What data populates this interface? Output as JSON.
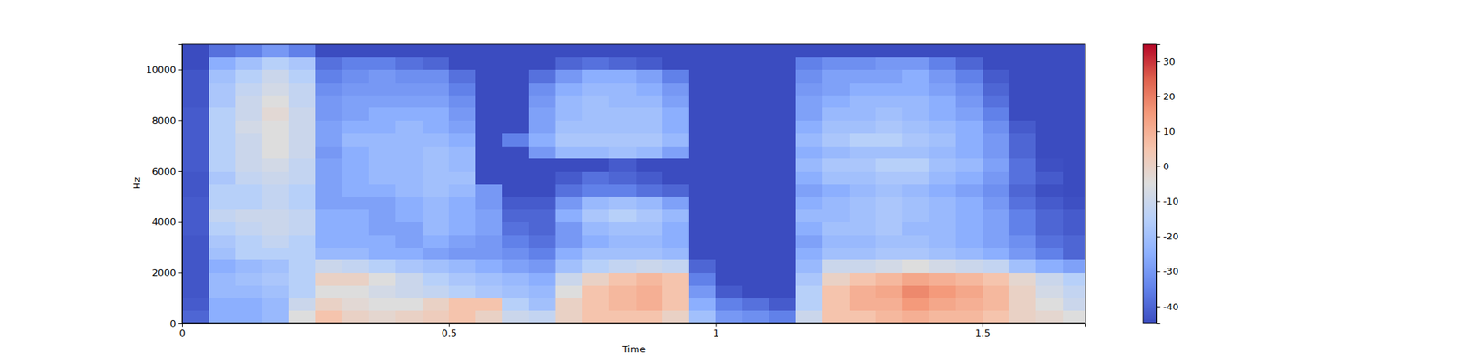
{
  "chart_data": {
    "type": "heatmap",
    "x_label": "Time",
    "y_label": "Hz",
    "xlim": [
      0,
      1.693
    ],
    "ylim": [
      0,
      11025
    ],
    "xticks": [
      0,
      0.5,
      1,
      1.5
    ],
    "yticks": [
      0,
      2000,
      4000,
      6000,
      8000,
      10000
    ],
    "color_range": [
      -44.8,
      35
    ],
    "color_ticks": [
      -40,
      -30,
      -20,
      -10,
      0,
      10,
      20,
      30
    ],
    "x_bins": [
      0,
      0.05,
      0.1,
      0.15,
      0.2,
      0.25,
      0.3,
      0.35,
      0.4,
      0.45,
      0.5,
      0.55,
      0.6,
      0.65,
      0.7,
      0.75,
      0.8,
      0.85,
      0.9,
      0.95,
      1,
      1.05,
      1.1,
      1.15,
      1.2,
      1.25,
      1.3,
      1.35,
      1.4,
      1.45,
      1.5,
      1.55,
      1.6,
      1.65,
      1.7
    ],
    "y_bins": [
      0,
      500,
      1000,
      1500,
      2000,
      2500,
      3000,
      3500,
      4000,
      4500,
      5000,
      5500,
      6000,
      6500,
      7000,
      7500,
      8000,
      8500,
      9000,
      9500,
      10000,
      10500,
      11000,
      11025
    ],
    "z": [
      [
        -40,
        -25,
        -25,
        -22,
        -5,
        5,
        0,
        -2,
        0,
        2,
        5,
        0,
        -10,
        -12,
        0,
        5,
        5,
        5,
        0,
        -20,
        -30,
        -32,
        -35,
        -10,
        5,
        5,
        8,
        10,
        8,
        8,
        5,
        0,
        -2,
        -5
      ],
      [
        -42,
        -25,
        -25,
        -22,
        -10,
        0,
        -3,
        -5,
        -5,
        0,
        5,
        5,
        -15,
        -20,
        0,
        5,
        8,
        10,
        5,
        -25,
        -35,
        -38,
        -42,
        -15,
        5,
        10,
        10,
        15,
        12,
        10,
        8,
        0,
        -5,
        -10
      ],
      [
        -43,
        -22,
        -22,
        -20,
        -15,
        -5,
        -5,
        -8,
        -10,
        -12,
        -15,
        -18,
        -20,
        -22,
        -5,
        5,
        8,
        10,
        5,
        -30,
        -42,
        -44.8,
        -44.8,
        -15,
        5,
        10,
        12,
        18,
        15,
        12,
        8,
        0,
        -8,
        -12
      ],
      [
        -43,
        -22,
        -20,
        -18,
        -15,
        0,
        0,
        -5,
        -10,
        -15,
        -18,
        -20,
        -22,
        -25,
        -10,
        0,
        5,
        8,
        5,
        -35,
        -44.8,
        -44.8,
        -44.8,
        -18,
        0,
        5,
        8,
        12,
        10,
        8,
        5,
        -2,
        -10,
        -15
      ],
      [
        -43,
        -25,
        -22,
        -20,
        -15,
        -10,
        -12,
        -15,
        -18,
        -20,
        -22,
        -25,
        -28,
        -30,
        -20,
        -15,
        -12,
        -10,
        -12,
        -40,
        -44.8,
        -44.8,
        -44.8,
        -22,
        -10,
        -10,
        -8,
        -5,
        -8,
        -10,
        -12,
        -20,
        -25,
        -28
      ],
      [
        -43,
        -20,
        -15,
        -15,
        -15,
        -22,
        -22,
        -25,
        -25,
        -28,
        -30,
        -30,
        -32,
        -35,
        -25,
        -20,
        -20,
        -20,
        -22,
        -44.8,
        -44.8,
        -44.8,
        -44.8,
        -25,
        -20,
        -20,
        -18,
        -18,
        -20,
        -22,
        -25,
        -30,
        -35,
        -40
      ],
      [
        -43,
        -18,
        -15,
        -12,
        -15,
        -25,
        -25,
        -25,
        -28,
        -25,
        -28,
        -30,
        -35,
        -38,
        -30,
        -25,
        -22,
        -22,
        -25,
        -44.8,
        -44.8,
        -44.8,
        -44.8,
        -28,
        -22,
        -22,
        -20,
        -20,
        -22,
        -25,
        -28,
        -32,
        -38,
        -40
      ],
      [
        -42,
        -15,
        -12,
        -10,
        -12,
        -25,
        -25,
        -28,
        -28,
        -22,
        -25,
        -28,
        -38,
        -40,
        -30,
        -22,
        -20,
        -20,
        -25,
        -44.8,
        -44.8,
        -44.8,
        -44.8,
        -25,
        -20,
        -20,
        -18,
        -22,
        -22,
        -25,
        -28,
        -35,
        -40,
        -42
      ],
      [
        -42,
        -12,
        -10,
        -10,
        -12,
        -25,
        -25,
        -28,
        -25,
        -22,
        -25,
        -28,
        -40,
        -40,
        -25,
        -18,
        -15,
        -18,
        -22,
        -44.8,
        -44.8,
        -44.8,
        -44.8,
        -22,
        -22,
        -20,
        -18,
        -20,
        -22,
        -25,
        -28,
        -35,
        -40,
        -42
      ],
      [
        -42,
        -15,
        -15,
        -12,
        -15,
        -28,
        -28,
        -28,
        -25,
        -22,
        -25,
        -30,
        -42,
        -42,
        -30,
        -22,
        -20,
        -22,
        -28,
        -44.8,
        -44.8,
        -44.8,
        -44.8,
        -25,
        -22,
        -20,
        -18,
        -20,
        -22,
        -25,
        -30,
        -38,
        -42,
        -44
      ],
      [
        -43,
        -15,
        -15,
        -12,
        -15,
        -28,
        -25,
        -25,
        -22,
        -20,
        -22,
        -30,
        -44.8,
        -44.8,
        -38,
        -35,
        -35,
        -38,
        -40,
        -44.8,
        -44.8,
        -44.8,
        -44.8,
        -28,
        -25,
        -22,
        -20,
        -22,
        -25,
        -28,
        -32,
        -40,
        -44,
        -44.8
      ],
      [
        -43,
        -18,
        -12,
        -10,
        -12,
        -28,
        -25,
        -22,
        -22,
        -20,
        -20,
        -44.8,
        -44.8,
        -44.8,
        -42,
        -38,
        -40,
        -42,
        -44.8,
        -44.8,
        -44.8,
        -44.8,
        -44.8,
        -25,
        -20,
        -20,
        -18,
        -18,
        -22,
        -25,
        -30,
        -38,
        -42,
        -44.8
      ],
      [
        -42,
        -15,
        -10,
        -8,
        -12,
        -28,
        -25,
        -22,
        -22,
        -20,
        -22,
        -44.8,
        -44.8,
        -44.8,
        -44.8,
        -44.8,
        -42,
        -44.8,
        -44.8,
        -44.8,
        -44.8,
        -44.8,
        -44.8,
        -22,
        -18,
        -18,
        -15,
        -15,
        -20,
        -22,
        -28,
        -38,
        -44,
        -44.8
      ],
      [
        -42,
        -15,
        -10,
        -5,
        -10,
        -30,
        -25,
        -22,
        -22,
        -20,
        -22,
        -44.8,
        -44.8,
        -30,
        -22,
        -22,
        -20,
        -22,
        -28,
        -44.8,
        -44.8,
        -44.8,
        -44.8,
        -25,
        -22,
        -20,
        -20,
        -20,
        -22,
        -25,
        -30,
        -40,
        -44.8,
        -44.8
      ],
      [
        -42,
        -15,
        -10,
        -5,
        -10,
        -28,
        -22,
        -22,
        -22,
        -22,
        -25,
        -44.8,
        -35,
        -25,
        -18,
        -18,
        -18,
        -18,
        -22,
        -44.8,
        -44.8,
        -44.8,
        -44.8,
        -22,
        -18,
        -15,
        -15,
        -18,
        -20,
        -25,
        -30,
        -40,
        -44.8,
        -44.8
      ],
      [
        -42,
        -15,
        -8,
        -5,
        -10,
        -28,
        -25,
        -25,
        -22,
        -25,
        -28,
        -44.8,
        -44.8,
        -28,
        -20,
        -20,
        -20,
        -20,
        -25,
        -44.8,
        -44.8,
        -44.8,
        -44.8,
        -25,
        -20,
        -20,
        -18,
        -20,
        -22,
        -25,
        -32,
        -42,
        -44.8,
        -44.8
      ],
      [
        -42,
        -15,
        -10,
        -3,
        -10,
        -30,
        -28,
        -25,
        -25,
        -25,
        -30,
        -44.8,
        -44.8,
        -28,
        -22,
        -20,
        -20,
        -20,
        -25,
        -44.8,
        -44.8,
        -44.8,
        -44.8,
        -28,
        -22,
        -22,
        -20,
        -22,
        -25,
        -28,
        -35,
        -44.8,
        -44.8,
        -44.8
      ],
      [
        -43,
        -18,
        -10,
        -5,
        -12,
        -30,
        -28,
        -28,
        -28,
        -28,
        -32,
        -44.8,
        -44.8,
        -30,
        -22,
        -20,
        -22,
        -22,
        -28,
        -44.8,
        -44.8,
        -44.8,
        -44.8,
        -28,
        -25,
        -22,
        -22,
        -22,
        -25,
        -30,
        -38,
        -44.8,
        -44.8,
        -44.8
      ],
      [
        -43,
        -18,
        -12,
        -8,
        -12,
        -32,
        -30,
        -30,
        -30,
        -30,
        -35,
        -44.8,
        -44.8,
        -32,
        -25,
        -22,
        -22,
        -25,
        -30,
        -44.8,
        -44.8,
        -44.8,
        -44.8,
        -30,
        -28,
        -25,
        -25,
        -25,
        -28,
        -32,
        -40,
        -44.8,
        -44.8,
        -44.8
      ],
      [
        -43,
        -20,
        -15,
        -10,
        -15,
        -35,
        -32,
        -30,
        -32,
        -32,
        -38,
        -44.8,
        -44.8,
        -38,
        -30,
        -25,
        -25,
        -28,
        -35,
        -44.8,
        -44.8,
        -44.8,
        -44.8,
        -32,
        -28,
        -28,
        -28,
        -25,
        -30,
        -35,
        -42,
        -44.8,
        -44.8,
        -44.8
      ],
      [
        -44.8,
        -25,
        -20,
        -15,
        -18,
        -38,
        -35,
        -35,
        -38,
        -40,
        -44.8,
        -44.8,
        -44.8,
        -44.8,
        -40,
        -38,
        -40,
        -42,
        -44.8,
        -44.8,
        -44.8,
        -44.8,
        -44.8,
        -35,
        -32,
        -32,
        -30,
        -30,
        -35,
        -40,
        -44.8,
        -44.8,
        -44.8,
        -44.8
      ],
      [
        -44.8,
        -38,
        -35,
        -30,
        -35,
        -44.8,
        -44.8,
        -44.8,
        -44.8,
        -44.8,
        -44.8,
        -44.8,
        -44.8,
        -44.8,
        -44.8,
        -44.8,
        -44.8,
        -44.8,
        -44.8,
        -44.8,
        -44.8,
        -44.8,
        -44.8,
        -44.8,
        -44.8,
        -44.8,
        -44.8,
        -44.8,
        -44.8,
        -44.8,
        -44.8,
        -44.8,
        -44.8,
        -44.8
      ],
      [
        -44.8,
        -44.8,
        -44.8,
        -44.8,
        -44.8,
        -44.8,
        -44.8,
        -44.8,
        -44.8,
        -44.8,
        -44.8,
        -44.8,
        -44.8,
        -44.8,
        -44.8,
        -44.8,
        -44.8,
        -44.8,
        -44.8,
        -44.8,
        -44.8,
        -44.8,
        -44.8,
        -44.8,
        -44.8,
        -44.8,
        -44.8,
        -44.8,
        -44.8,
        -44.8,
        -44.8,
        -44.8,
        -44.8,
        -44.8
      ]
    ]
  }
}
